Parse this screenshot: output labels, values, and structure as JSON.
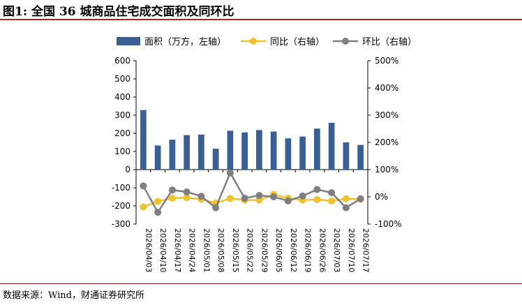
{
  "title": "图1: 全国 36 城商品住宅成交面积及同环比",
  "source": "数据来源：Wind，财通证券研究所",
  "chart_data": {
    "type": "bar+line",
    "categories": [
      "2026/04/03",
      "2026/04/10",
      "2026/04/17",
      "2026/04/24",
      "2026/05/01",
      "2026/05/08",
      "2026/05/15",
      "2026/05/22",
      "2026/05/29",
      "2026/06/05",
      "2026/06/12",
      "2026/06/19",
      "2026/06/26",
      "2026/07/03",
      "2026/07/10",
      "2026/07/17"
    ],
    "series": [
      {
        "name": "面积（万方，左轴）",
        "type": "bar",
        "axis": "left",
        "color": "#3a5f95",
        "values": [
          328,
          133,
          165,
          190,
          193,
          115,
          214,
          205,
          218,
          210,
          172,
          182,
          226,
          258,
          150,
          136
        ]
      },
      {
        "name": "同比（右轴）",
        "type": "line",
        "axis": "right",
        "color": "#f2c12e",
        "values": [
          -37,
          -17,
          -5,
          -3,
          -9,
          -23,
          -6,
          -12,
          -12,
          9,
          -5,
          -12,
          -10,
          -15,
          -7,
          -9
        ]
      },
      {
        "name": "环比（右轴）",
        "type": "line",
        "axis": "right",
        "color": "#7f7f7f",
        "values": [
          40,
          -57,
          25,
          18,
          2,
          -40,
          88,
          -5,
          5,
          0,
          -15,
          3,
          27,
          15,
          -40,
          -7
        ]
      }
    ],
    "left_axis": {
      "ylim": [
        -300,
        600
      ],
      "ticks": [
        "600",
        "500",
        "400",
        "300",
        "200",
        "100",
        "0",
        "-100",
        "-200",
        "-300"
      ]
    },
    "right_axis": {
      "ylim": [
        -100,
        500
      ],
      "ticks": [
        "500%",
        "400%",
        "300%",
        "200%",
        "100%",
        "0%",
        "-100%"
      ]
    },
    "legend_position": "top"
  }
}
